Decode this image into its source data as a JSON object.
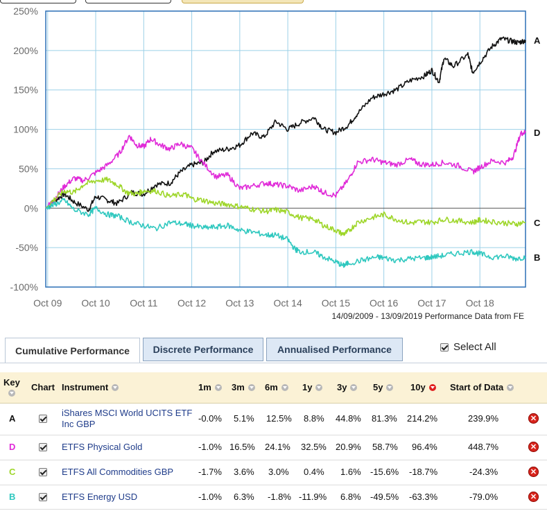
{
  "chart_data": {
    "type": "line",
    "x_tick_labels": [
      "Oct 09",
      "Oct 10",
      "Oct 11",
      "Oct 12",
      "Oct 13",
      "Oct 14",
      "Oct 15",
      "Oct 16",
      "Oct 17",
      "Oct 18"
    ],
    "y_tick_labels": [
      "250%",
      "200%",
      "150%",
      "100%",
      "50%",
      "0%",
      "-50%",
      "-100%"
    ],
    "y_ticks": [
      250,
      200,
      150,
      100,
      50,
      0,
      -50,
      -100
    ],
    "ylim": [
      -100,
      250
    ],
    "xlim": [
      2009.71,
      2019.7
    ],
    "x_ticks": [
      2009.75,
      2010.75,
      2011.75,
      2012.75,
      2013.75,
      2014.75,
      2015.75,
      2016.75,
      2017.75,
      2018.75
    ],
    "source_note": "14/09/2009 - 13/09/2019 Performance Data from FE",
    "series": [
      {
        "key": "A",
        "color": "#111111",
        "points": [
          [
            2009.71,
            0
          ],
          [
            2009.9,
            10
          ],
          [
            2010.1,
            18
          ],
          [
            2010.3,
            8
          ],
          [
            2010.6,
            -2
          ],
          [
            2010.75,
            15
          ],
          [
            2011.0,
            10
          ],
          [
            2011.2,
            6
          ],
          [
            2011.5,
            20
          ],
          [
            2011.75,
            18
          ],
          [
            2012.0,
            30
          ],
          [
            2012.3,
            32
          ],
          [
            2012.5,
            45
          ],
          [
            2012.75,
            55
          ],
          [
            2013.0,
            58
          ],
          [
            2013.2,
            72
          ],
          [
            2013.5,
            75
          ],
          [
            2013.75,
            80
          ],
          [
            2014.0,
            95
          ],
          [
            2014.25,
            90
          ],
          [
            2014.5,
            110
          ],
          [
            2014.75,
            100
          ],
          [
            2015.0,
            108
          ],
          [
            2015.3,
            115
          ],
          [
            2015.5,
            100
          ],
          [
            2015.75,
            96
          ],
          [
            2016.0,
            105
          ],
          [
            2016.2,
            120
          ],
          [
            2016.5,
            140
          ],
          [
            2016.75,
            145
          ],
          [
            2017.0,
            150
          ],
          [
            2017.3,
            162
          ],
          [
            2017.6,
            168
          ],
          [
            2017.75,
            175
          ],
          [
            2017.9,
            160
          ],
          [
            2018.0,
            190
          ],
          [
            2018.2,
            180
          ],
          [
            2018.5,
            195
          ],
          [
            2018.6,
            172
          ],
          [
            2018.75,
            185
          ],
          [
            2019.0,
            205
          ],
          [
            2019.2,
            215
          ],
          [
            2019.4,
            212
          ],
          [
            2019.55,
            210
          ],
          [
            2019.7,
            213
          ]
        ]
      },
      {
        "key": "D",
        "color": "#e02ad8",
        "points": [
          [
            2009.71,
            0
          ],
          [
            2009.9,
            12
          ],
          [
            2010.1,
            28
          ],
          [
            2010.3,
            38
          ],
          [
            2010.5,
            35
          ],
          [
            2010.75,
            45
          ],
          [
            2011.0,
            55
          ],
          [
            2011.25,
            70
          ],
          [
            2011.45,
            92
          ],
          [
            2011.6,
            80
          ],
          [
            2011.75,
            78
          ],
          [
            2011.9,
            88
          ],
          [
            2012.1,
            80
          ],
          [
            2012.3,
            75
          ],
          [
            2012.5,
            82
          ],
          [
            2012.75,
            76
          ],
          [
            2012.95,
            60
          ],
          [
            2013.25,
            40
          ],
          [
            2013.5,
            42
          ],
          [
            2013.75,
            25
          ],
          [
            2014.0,
            28
          ],
          [
            2014.3,
            32
          ],
          [
            2014.5,
            30
          ],
          [
            2014.75,
            28
          ],
          [
            2015.0,
            22
          ],
          [
            2015.3,
            28
          ],
          [
            2015.5,
            20
          ],
          [
            2015.75,
            16
          ],
          [
            2016.0,
            35
          ],
          [
            2016.2,
            58
          ],
          [
            2016.5,
            62
          ],
          [
            2016.75,
            58
          ],
          [
            2017.0,
            55
          ],
          [
            2017.3,
            62
          ],
          [
            2017.5,
            56
          ],
          [
            2017.75,
            55
          ],
          [
            2018.0,
            58
          ],
          [
            2018.3,
            54
          ],
          [
            2018.6,
            46
          ],
          [
            2018.75,
            52
          ],
          [
            2019.0,
            60
          ],
          [
            2019.3,
            58
          ],
          [
            2019.45,
            66
          ],
          [
            2019.6,
            95
          ],
          [
            2019.7,
            96
          ]
        ]
      },
      {
        "key": "C",
        "color": "#9ed62a",
        "points": [
          [
            2009.71,
            0
          ],
          [
            2009.9,
            12
          ],
          [
            2010.1,
            22
          ],
          [
            2010.3,
            20
          ],
          [
            2010.5,
            30
          ],
          [
            2010.75,
            35
          ],
          [
            2011.0,
            36
          ],
          [
            2011.2,
            30
          ],
          [
            2011.4,
            20
          ],
          [
            2011.6,
            18
          ],
          [
            2011.75,
            22
          ],
          [
            2012.0,
            22
          ],
          [
            2012.3,
            15
          ],
          [
            2012.6,
            18
          ],
          [
            2012.75,
            12
          ],
          [
            2013.0,
            10
          ],
          [
            2013.25,
            6
          ],
          [
            2013.5,
            5
          ],
          [
            2013.75,
            2
          ],
          [
            2014.0,
            -1
          ],
          [
            2014.3,
            -4
          ],
          [
            2014.5,
            -2
          ],
          [
            2014.75,
            -5
          ],
          [
            2015.0,
            -12
          ],
          [
            2015.3,
            -14
          ],
          [
            2015.5,
            -22
          ],
          [
            2015.75,
            -28
          ],
          [
            2015.9,
            -33
          ],
          [
            2016.0,
            -30
          ],
          [
            2016.2,
            -18
          ],
          [
            2016.5,
            -12
          ],
          [
            2016.75,
            -8
          ],
          [
            2017.0,
            -14
          ],
          [
            2017.3,
            -19
          ],
          [
            2017.5,
            -17
          ],
          [
            2017.75,
            -18
          ],
          [
            2018.0,
            -14
          ],
          [
            2018.3,
            -16
          ],
          [
            2018.6,
            -18
          ],
          [
            2018.75,
            -15
          ],
          [
            2019.0,
            -17
          ],
          [
            2019.3,
            -19
          ],
          [
            2019.5,
            -20
          ],
          [
            2019.7,
            -18
          ]
        ]
      },
      {
        "key": "B",
        "color": "#2fc8bf",
        "points": [
          [
            2009.71,
            0
          ],
          [
            2009.9,
            5
          ],
          [
            2010.1,
            10
          ],
          [
            2010.3,
            -2
          ],
          [
            2010.6,
            -8
          ],
          [
            2010.75,
            0
          ],
          [
            2011.0,
            -8
          ],
          [
            2011.2,
            -10
          ],
          [
            2011.5,
            -18
          ],
          [
            2011.75,
            -22
          ],
          [
            2012.0,
            -26
          ],
          [
            2012.3,
            -18
          ],
          [
            2012.6,
            -20
          ],
          [
            2012.75,
            -22
          ],
          [
            2013.0,
            -25
          ],
          [
            2013.25,
            -24
          ],
          [
            2013.5,
            -22
          ],
          [
            2013.75,
            -28
          ],
          [
            2014.0,
            -30
          ],
          [
            2014.3,
            -34
          ],
          [
            2014.5,
            -34
          ],
          [
            2014.75,
            -40
          ],
          [
            2014.9,
            -52
          ],
          [
            2015.0,
            -55
          ],
          [
            2015.3,
            -56
          ],
          [
            2015.5,
            -62
          ],
          [
            2015.75,
            -68
          ],
          [
            2015.9,
            -73
          ],
          [
            2016.0,
            -70
          ],
          [
            2016.3,
            -66
          ],
          [
            2016.6,
            -62
          ],
          [
            2016.75,
            -63
          ],
          [
            2017.0,
            -66
          ],
          [
            2017.3,
            -64
          ],
          [
            2017.6,
            -63
          ],
          [
            2017.75,
            -62
          ],
          [
            2018.0,
            -60
          ],
          [
            2018.3,
            -57
          ],
          [
            2018.6,
            -55
          ],
          [
            2018.75,
            -58
          ],
          [
            2019.0,
            -62
          ],
          [
            2019.3,
            -61
          ],
          [
            2019.5,
            -64
          ],
          [
            2019.7,
            -62
          ]
        ]
      }
    ]
  },
  "tabs": {
    "cumulative": "Cumulative Performance",
    "discrete": "Discrete Performance",
    "annualised": "Annualised Performance"
  },
  "select_all": "Select All",
  "table": {
    "headers": {
      "key": "Key",
      "chart": "Chart",
      "instrument": "Instrument",
      "m1": "1m",
      "m3": "3m",
      "m6": "6m",
      "y1": "1y",
      "y3": "3y",
      "y5": "5y",
      "y10": "10y",
      "start": "Start of Data"
    },
    "rows": [
      {
        "key": "A",
        "key_color": "#111111",
        "instrument": "iShares MSCI World UCITS ETF Inc GBP",
        "m1": "-0.0%",
        "m3": "5.1%",
        "m6": "12.5%",
        "y1": "8.8%",
        "y3": "44.8%",
        "y5": "81.3%",
        "y10": "214.2%",
        "start": "239.9%"
      },
      {
        "key": "D",
        "key_color": "#e02ad8",
        "instrument": "ETFS Physical Gold",
        "m1": "-1.0%",
        "m3": "16.5%",
        "m6": "24.1%",
        "y1": "32.5%",
        "y3": "20.9%",
        "y5": "58.7%",
        "y10": "96.4%",
        "start": "448.7%"
      },
      {
        "key": "C",
        "key_color": "#9ed62a",
        "instrument": "ETFS All Commodities GBP",
        "m1": "-1.7%",
        "m3": "3.6%",
        "m6": "3.0%",
        "y1": "0.4%",
        "y3": "1.6%",
        "y5": "-15.6%",
        "y10": "-18.7%",
        "start": "-24.3%"
      },
      {
        "key": "B",
        "key_color": "#2fc8bf",
        "instrument": "ETFS Energy USD",
        "m1": "-1.0%",
        "m3": "6.3%",
        "m6": "-1.8%",
        "y1": "-11.9%",
        "y3": "6.8%",
        "y5": "-49.5%",
        "y10": "-63.3%",
        "start": "-79.0%"
      }
    ]
  }
}
